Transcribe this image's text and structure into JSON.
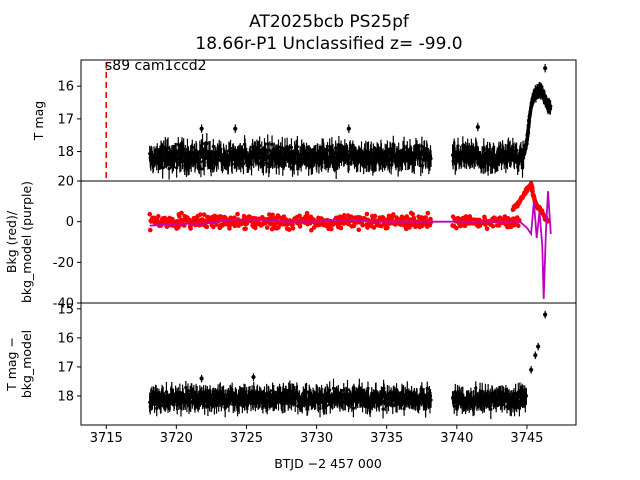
{
  "figure": {
    "title_line1": "AT2025bcb  PS25pf",
    "title_line2": "18.66r-P1 Unclassified z= -99.0"
  },
  "chart_data": [
    {
      "type": "scatter",
      "panel": "top",
      "ylabel": "T mag",
      "y_inverted": true,
      "xlim": [
        3713.2,
        3748.5
      ],
      "ylim": [
        18.9,
        15.2
      ],
      "yticks": [
        16,
        17,
        18
      ],
      "annotation": "s89 cam1ccd2",
      "marker_line_x": 3715.0,
      "marker_line_color": "#ff0000",
      "series": [
        {
          "color": "#000000",
          "segments": [
            {
              "x_start": 3718.1,
              "x_end": 3738.2,
              "y_center": 18.15,
              "spread": 0.45
            },
            {
              "x_start": 3739.7,
              "x_end": 3744.8,
              "y_center": 18.15,
              "spread": 0.45
            }
          ],
          "rise": [
            {
              "x": 3744.8,
              "y": 18.0
            },
            {
              "x": 3745.0,
              "y": 17.7
            },
            {
              "x": 3745.1,
              "y": 17.3
            },
            {
              "x": 3745.2,
              "y": 16.9
            },
            {
              "x": 3745.35,
              "y": 16.5
            },
            {
              "x": 3745.5,
              "y": 16.3
            },
            {
              "x": 3745.7,
              "y": 16.2
            },
            {
              "x": 3745.9,
              "y": 16.1
            },
            {
              "x": 3746.1,
              "y": 16.2
            },
            {
              "x": 3746.3,
              "y": 16.4
            },
            {
              "x": 3746.5,
              "y": 16.6
            },
            {
              "x": 3746.7,
              "y": 16.7
            }
          ],
          "outliers": [
            {
              "x": 3746.3,
              "y": 15.45
            },
            {
              "x": 3724.2,
              "y": 17.3
            },
            {
              "x": 3732.3,
              "y": 17.3
            },
            {
              "x": 3721.8,
              "y": 17.3
            },
            {
              "x": 3741.5,
              "y": 17.25
            }
          ]
        }
      ]
    },
    {
      "type": "scatter",
      "panel": "middle",
      "ylabel": "Bkg (red)/\nbkg_model (purple)",
      "xlim": [
        3713.2,
        3748.5
      ],
      "ylim": [
        -40,
        20
      ],
      "yticks": [
        -40,
        -20,
        0,
        20
      ],
      "series": [
        {
          "color": "#ff0000",
          "segments": [
            {
              "x_start": 3718.1,
              "x_end": 3738.2,
              "y_center": 0,
              "spread": 5
            },
            {
              "x_start": 3739.7,
              "x_end": 3744.5,
              "y_center": 0,
              "spread": 4
            }
          ],
          "rise": [
            {
              "x": 3744.0,
              "y": 6
            },
            {
              "x": 3744.5,
              "y": 10
            },
            {
              "x": 3745.0,
              "y": 16
            },
            {
              "x": 3745.3,
              "y": 18
            },
            {
              "x": 3745.6,
              "y": 9
            },
            {
              "x": 3746.0,
              "y": 5
            },
            {
              "x": 3746.5,
              "y": 0
            }
          ]
        },
        {
          "color": "#bf00bf",
          "line": [
            {
              "x": 3718.1,
              "y": -2
            },
            {
              "x": 3720,
              "y": -1
            },
            {
              "x": 3722,
              "y": -1
            },
            {
              "x": 3724,
              "y": 1
            },
            {
              "x": 3726,
              "y": 1
            },
            {
              "x": 3728,
              "y": 0
            },
            {
              "x": 3730,
              "y": 0
            },
            {
              "x": 3732,
              "y": 1
            },
            {
              "x": 3734,
              "y": 0
            },
            {
              "x": 3736,
              "y": 0
            },
            {
              "x": 3738.2,
              "y": 0
            },
            {
              "x": 3739.7,
              "y": 0
            },
            {
              "x": 3742,
              "y": 0
            },
            {
              "x": 3744.5,
              "y": 0
            },
            {
              "x": 3745.0,
              "y": -3
            },
            {
              "x": 3745.3,
              "y": -6
            },
            {
              "x": 3745.5,
              "y": 10
            },
            {
              "x": 3745.7,
              "y": -8
            },
            {
              "x": 3745.9,
              "y": 5
            },
            {
              "x": 3746.1,
              "y": -12
            },
            {
              "x": 3746.2,
              "y": -38
            },
            {
              "x": 3746.35,
              "y": -5
            },
            {
              "x": 3746.5,
              "y": 15
            },
            {
              "x": 3746.7,
              "y": -6
            }
          ]
        }
      ]
    },
    {
      "type": "scatter",
      "panel": "bottom",
      "ylabel": "T mag −\nbkg_model",
      "y_inverted": true,
      "xlim": [
        3713.2,
        3748.5
      ],
      "ylim": [
        19.0,
        14.8
      ],
      "yticks": [
        15,
        16,
        17,
        18
      ],
      "xlabel": "BTJD −2 457 000",
      "xticks": [
        3715,
        3720,
        3725,
        3730,
        3735,
        3740,
        3745
      ],
      "series": [
        {
          "color": "#000000",
          "segments": [
            {
              "x_start": 3718.1,
              "x_end": 3738.2,
              "y_center": 18.1,
              "spread": 0.45
            },
            {
              "x_start": 3739.7,
              "x_end": 3745.0,
              "y_center": 18.1,
              "spread": 0.45
            }
          ],
          "outliers": [
            {
              "x": 3746.3,
              "y": 15.2
            },
            {
              "x": 3745.8,
              "y": 16.3
            },
            {
              "x": 3745.6,
              "y": 16.6
            },
            {
              "x": 3745.3,
              "y": 17.1
            },
            {
              "x": 3725.5,
              "y": 17.35
            },
            {
              "x": 3721.8,
              "y": 17.4
            }
          ]
        }
      ]
    }
  ]
}
